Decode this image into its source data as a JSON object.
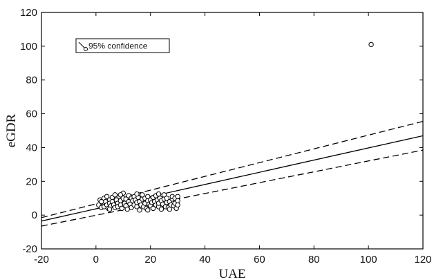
{
  "chart_data": {
    "type": "scatter",
    "xlabel": "UAE",
    "ylabel": "eGDR",
    "xlim": [
      -20,
      120
    ],
    "ylim": [
      -20,
      120
    ],
    "xticks": [
      "-20",
      "0",
      "20",
      "40",
      "60",
      "80",
      "100",
      "120"
    ],
    "yticks": [
      "-20",
      "0",
      "20",
      "40",
      "60",
      "80",
      "100",
      "120"
    ],
    "grid": false,
    "legend": {
      "placement": "top-left",
      "label": "95% confidence"
    },
    "fit_line": {
      "x": [
        -20,
        120
      ],
      "y": [
        -3.5,
        47
      ]
    },
    "confidence_upper": {
      "x": [
        -20,
        120
      ],
      "y": [
        -1.5,
        55.5
      ]
    },
    "confidence_lower": {
      "x": [
        -20,
        120
      ],
      "y": [
        -6.5,
        38.5
      ]
    },
    "points": [
      [
        1,
        6
      ],
      [
        1.5,
        9
      ],
      [
        2,
        4.5
      ],
      [
        2.5,
        7.5
      ],
      [
        3,
        10
      ],
      [
        3,
        5
      ],
      [
        3.5,
        8
      ],
      [
        4,
        11
      ],
      [
        4,
        6
      ],
      [
        4.5,
        4
      ],
      [
        5,
        9
      ],
      [
        5,
        7
      ],
      [
        5.5,
        5.5
      ],
      [
        6,
        10.5
      ],
      [
        6,
        8
      ],
      [
        6.5,
        6
      ],
      [
        7,
        12
      ],
      [
        7,
        4.5
      ],
      [
        7.5,
        9
      ],
      [
        8,
        7
      ],
      [
        8,
        5
      ],
      [
        8.5,
        11
      ],
      [
        9,
        8.5
      ],
      [
        9,
        6
      ],
      [
        9.5,
        4
      ],
      [
        10,
        10
      ],
      [
        10,
        13
      ],
      [
        10.5,
        7
      ],
      [
        11,
        5.5
      ],
      [
        11,
        9.5
      ],
      [
        11.5,
        3.5
      ],
      [
        12,
        8
      ],
      [
        12,
        11.5
      ],
      [
        12.5,
        6.5
      ],
      [
        13,
        10
      ],
      [
        13,
        4.5
      ],
      [
        13.5,
        8.5
      ],
      [
        14,
        6
      ],
      [
        14,
        11
      ],
      [
        14.5,
        9
      ],
      [
        15,
        5
      ],
      [
        15,
        7.5
      ],
      [
        15.5,
        10.5
      ],
      [
        16,
        3
      ],
      [
        16,
        8
      ],
      [
        16.5,
        6
      ],
      [
        17,
        9.5
      ],
      [
        17,
        12
      ],
      [
        17.5,
        5
      ],
      [
        18,
        7
      ],
      [
        18,
        10
      ],
      [
        18.5,
        4
      ],
      [
        19,
        8.5
      ],
      [
        19,
        11
      ],
      [
        19.5,
        6.5
      ],
      [
        20,
        9
      ],
      [
        20,
        5.5
      ],
      [
        20.5,
        7.5
      ],
      [
        21,
        10.5
      ],
      [
        21,
        4
      ],
      [
        21.5,
        8
      ],
      [
        22,
        6
      ],
      [
        22,
        11.5
      ],
      [
        22.5,
        9
      ],
      [
        23,
        5
      ],
      [
        23,
        7
      ],
      [
        23.5,
        10
      ],
      [
        24,
        3.5
      ],
      [
        24,
        8.5
      ],
      [
        24.5,
        6.5
      ],
      [
        25,
        9.5
      ],
      [
        25,
        12
      ],
      [
        25.5,
        5
      ],
      [
        26,
        7.5
      ],
      [
        26,
        10
      ],
      [
        26.5,
        4.5
      ],
      [
        27,
        8
      ],
      [
        27.5,
        6
      ],
      [
        28,
        9.5
      ],
      [
        28,
        11
      ],
      [
        28.5,
        5.5
      ],
      [
        29,
        7
      ],
      [
        29,
        10
      ],
      [
        29.5,
        4
      ],
      [
        30,
        8.5
      ],
      [
        30,
        6
      ],
      [
        30,
        11
      ],
      [
        2,
        8
      ],
      [
        5,
        3.5
      ],
      [
        9,
        12
      ],
      [
        15,
        12.5
      ],
      [
        19,
        3
      ],
      [
        23,
        12.5
      ],
      [
        27,
        3.5
      ],
      [
        101,
        101
      ]
    ]
  }
}
